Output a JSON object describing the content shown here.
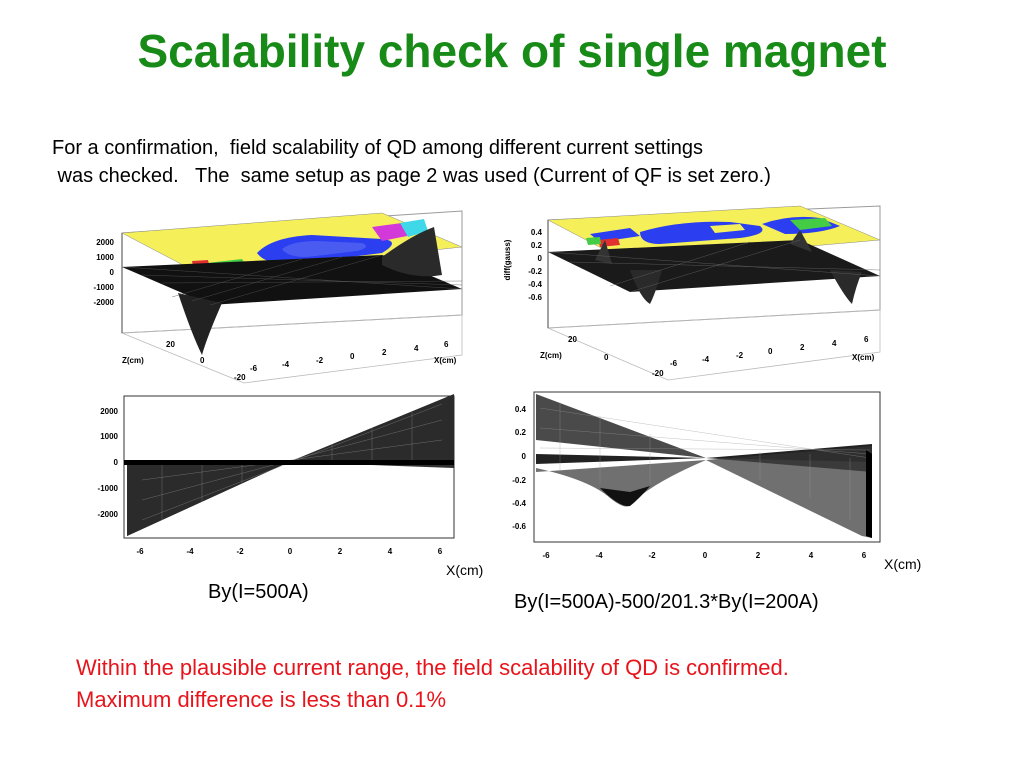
{
  "title": "Scalability check of single magnet",
  "intro": {
    "line1": "For a confirmation,  field scalability of QD among different current settings",
    "line2": " was checked.   The  same setup as page 2 was used (Current of QF is set zero.)"
  },
  "plots": {
    "top_left": {
      "y_ticks": [
        "2000",
        "1000",
        "0",
        "-1000",
        "-2000"
      ],
      "z_label": "Z(cm)",
      "z_ticks": [
        "20",
        "0",
        "-20"
      ],
      "x_label": "X(cm)",
      "x_ticks": [
        "-6",
        "-4",
        "-2",
        "0",
        "2",
        "4",
        "6"
      ]
    },
    "top_right": {
      "y_label": "diff(gauss)",
      "y_ticks": [
        "0.4",
        "0.2",
        "0",
        "-0.2",
        "-0.4",
        "-0.6"
      ],
      "z_label": "Z(cm)",
      "z_ticks": [
        "20",
        "0",
        "-20"
      ],
      "x_label": "X(cm)",
      "x_ticks": [
        "-6",
        "-4",
        "-2",
        "0",
        "2",
        "4",
        "6"
      ]
    },
    "bottom_left": {
      "y_ticks": [
        "2000",
        "1000",
        "0",
        "-1000",
        "-2000"
      ],
      "x_ticks": [
        "-6",
        "-4",
        "-2",
        "0",
        "2",
        "4",
        "6"
      ],
      "x_unit": "X(cm)",
      "caption": "By(I=500A)"
    },
    "bottom_right": {
      "y_ticks": [
        "0.4",
        "0.2",
        "0",
        "-0.2",
        "-0.4",
        "-0.6"
      ],
      "x_ticks": [
        "-6",
        "-4",
        "-2",
        "0",
        "2",
        "4",
        "6"
      ],
      "x_unit": "X(cm)",
      "caption": "By(I=500A)-500/201.3*By(I=200A)"
    }
  },
  "conclusion": {
    "line1": "Within the plausible current range, the field scalability of QD is confirmed.",
    "line2": "Maximum difference is less than 0.1%"
  },
  "colors": {
    "title": "#178a17",
    "conclusion": "#e8141b",
    "map_yellow": "#f5f05a",
    "map_blue": "#2b3ff0"
  }
}
